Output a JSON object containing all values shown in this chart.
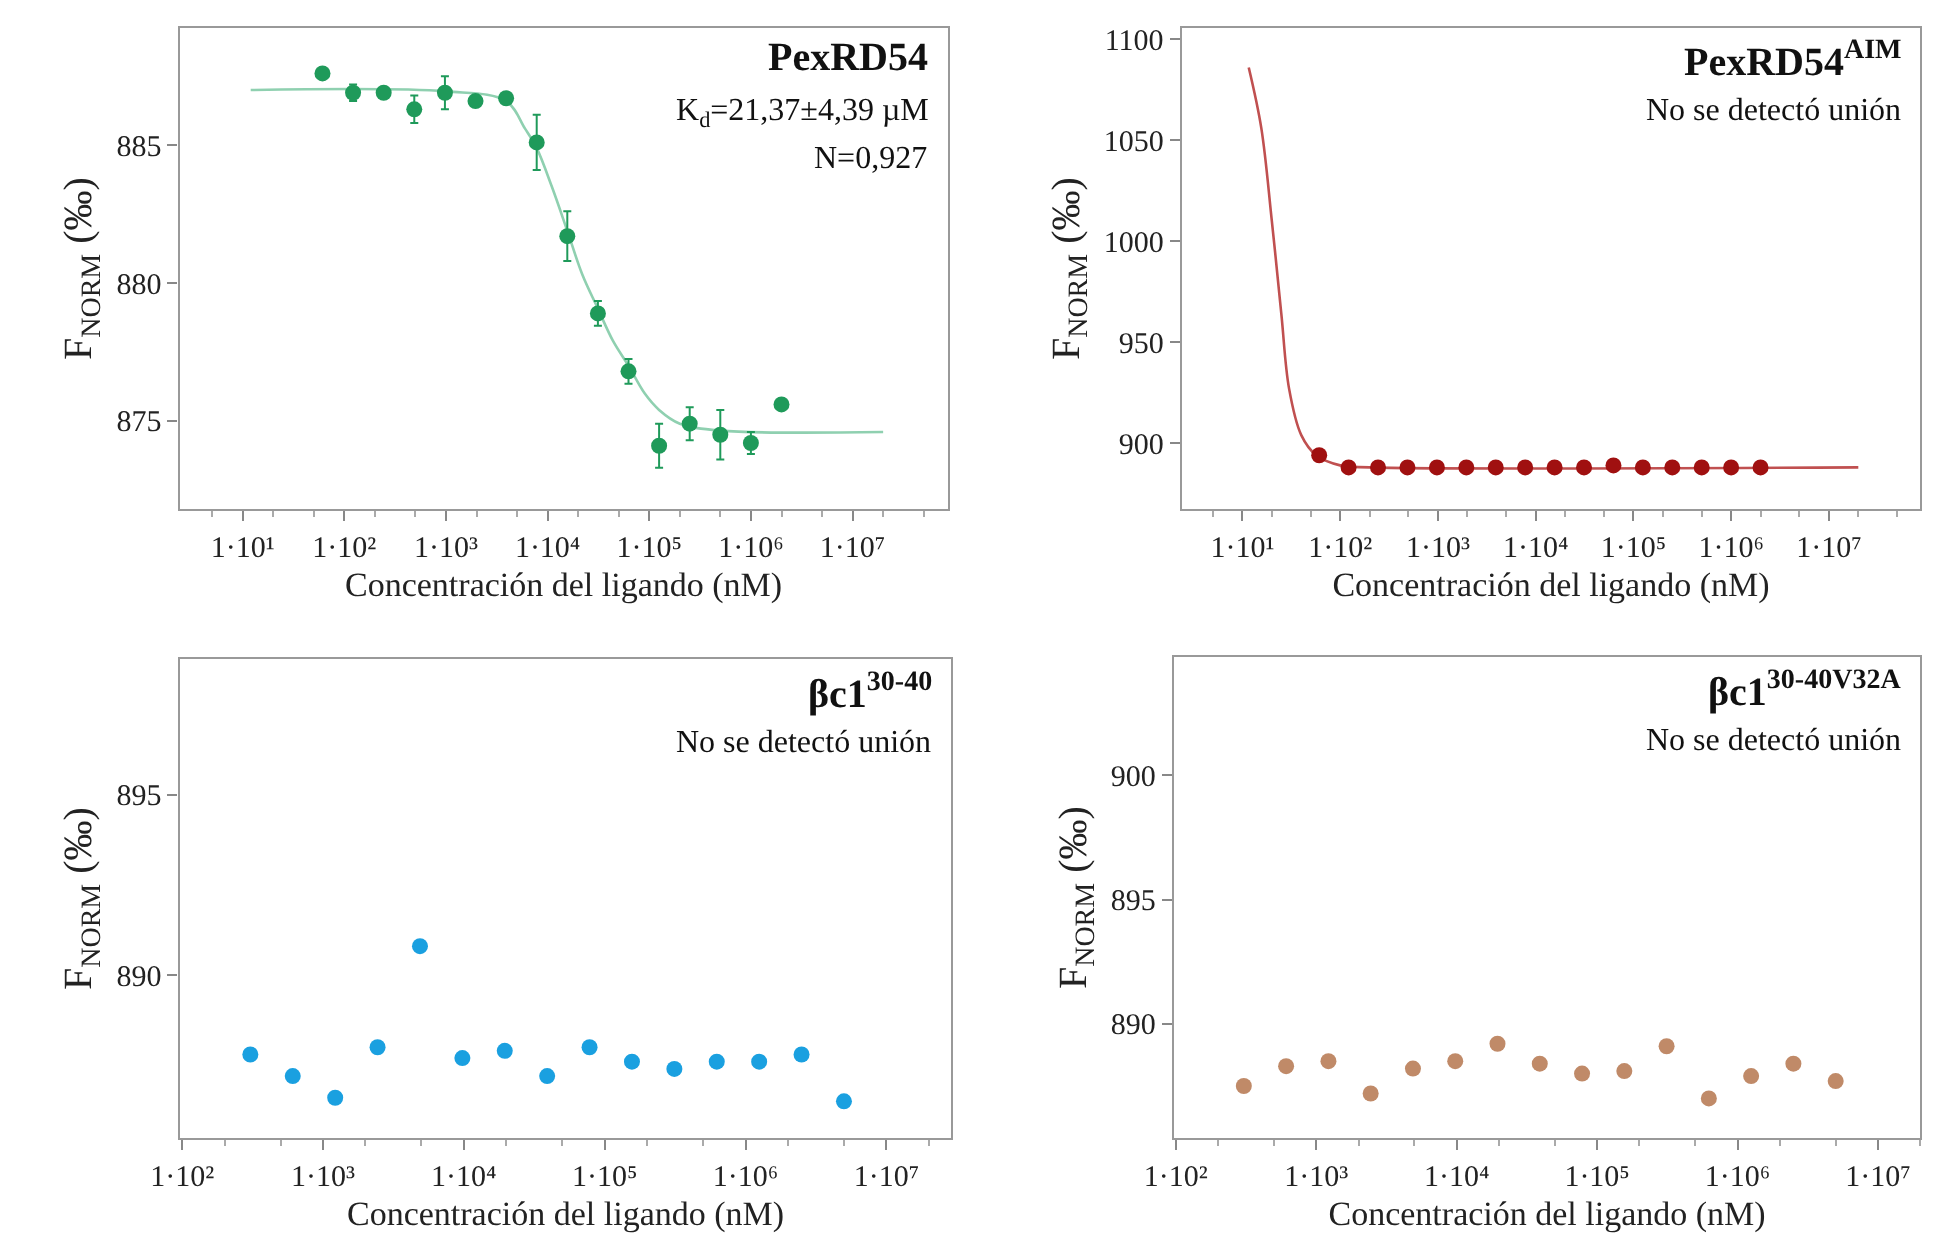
{
  "chart_data": [
    {
      "type": "scatter",
      "title": "PexRD54",
      "xlabel": "Concentración del ligando (nM)",
      "ylabel": "F$_{NORM}$ (‰)",
      "annotations": [
        "K$_{d}$=21,37±4,39 µM",
        "N=0,927"
      ],
      "log": "x",
      "marker": "circle",
      "xlim": [
        2.4,
        86000000
      ],
      "xticks": [
        {
          "value": 10,
          "label": "1·10¹"
        },
        {
          "value": 100,
          "label": "1·10²"
        },
        {
          "value": 1000,
          "label": "1·10³"
        },
        {
          "value": 10000,
          "label": "1·10⁴"
        },
        {
          "value": 100000,
          "label": "1·10⁵"
        },
        {
          "value": 1000000,
          "label": "1·10⁶"
        },
        {
          "value": 10000000,
          "label": "1·10⁷"
        }
      ],
      "ylim": [
        871.8,
        889.25
      ],
      "yticks": [
        875,
        880,
        885
      ],
      "series": [
        {
          "type": "line",
          "marker": "none",
          "color": "#8fd0b0",
          "x": [
            12,
            1000,
            3900,
            6000,
            7800,
            11000,
            15600,
            22000,
            31000,
            44000,
            62500,
            90000,
            125000,
            200000,
            500000,
            20000000
          ],
          "values": [
            887.0,
            886.95,
            886.6,
            885.6,
            884.9,
            883.5,
            881.9,
            880.3,
            879.1,
            877.9,
            877.0,
            876.0,
            875.4,
            874.9,
            874.65,
            874.6
          ]
        },
        {
          "color": "#1f9a5a",
          "x": [
            61,
            122,
            244,
            488,
            977,
            1953,
            3906,
            7813,
            15625,
            31250,
            62500,
            125000,
            250000,
            500000,
            1000000,
            2000000
          ],
          "values": [
            887.6,
            886.9,
            886.9,
            886.3,
            886.9,
            886.6,
            886.7,
            885.1,
            881.7,
            878.9,
            876.8,
            874.1,
            874.9,
            874.5,
            874.2,
            875.6
          ],
          "errors": [
            null,
            0.3,
            null,
            0.5,
            0.6,
            null,
            null,
            1.0,
            0.9,
            0.45,
            0.45,
            0.8,
            0.6,
            0.9,
            0.4,
            null
          ]
        }
      ]
    },
    {
      "type": "scatter",
      "title": "PexRD54$^{AIM}$",
      "subtitle": "No se detectó unión",
      "xlabel": "Concentración del ligando (nM)",
      "ylabel": "F$_{NORM}$ (‰)",
      "log": "x",
      "marker": "circle",
      "xlim": [
        2.4,
        86000000
      ],
      "xticks": [
        {
          "value": 10,
          "label": "1·10¹"
        },
        {
          "value": 100,
          "label": "1·10²"
        },
        {
          "value": 1000,
          "label": "1·10³"
        },
        {
          "value": 10000,
          "label": "1·10⁴"
        },
        {
          "value": 100000,
          "label": "1·10⁵"
        },
        {
          "value": 1000000,
          "label": "1·10⁶"
        },
        {
          "value": 10000000,
          "label": "1·10⁷"
        }
      ],
      "ylim": [
        867.3,
        1105.6
      ],
      "yticks": [
        900,
        950,
        1000,
        1050,
        1100
      ],
      "series": [
        {
          "type": "line",
          "marker": "none",
          "color": "#c05050",
          "x": [
            11.6,
            15.6,
            20,
            25,
            30,
            40,
            57,
            100,
            200,
            20000000
          ],
          "values": [
            1086,
            1056,
            1010,
            964,
            927,
            904,
            894,
            889,
            888,
            888
          ]
        },
        {
          "color": "#a01010",
          "x": [
            61,
            122,
            244,
            488,
            977,
            1953,
            3906,
            7813,
            15625,
            31250,
            62500,
            125000,
            250000,
            500000,
            1000000,
            2000000
          ],
          "values": [
            894,
            888,
            888,
            888,
            888,
            888,
            888,
            888,
            888,
            888,
            889,
            888,
            888,
            888,
            888,
            888
          ]
        }
      ]
    },
    {
      "type": "scatter",
      "title": "βc1$^{30-40}$",
      "subtitle": "No se detectó unión",
      "xlabel": "Concentración del ligando (nM)",
      "ylabel": "F$_{NORM}$ (‰)",
      "log": "x",
      "marker": "circle",
      "xlim": [
        96,
        29000000
      ],
      "xticks": [
        {
          "value": 100,
          "label": "1·10²"
        },
        {
          "value": 1000,
          "label": "1·10³"
        },
        {
          "value": 10000,
          "label": "1·10⁴"
        },
        {
          "value": 100000,
          "label": "1·10⁵"
        },
        {
          "value": 1000000,
          "label": "1·10⁶"
        },
        {
          "value": 10000000,
          "label": "1·10⁷"
        }
      ],
      "ylim": [
        885.48,
        898.76
      ],
      "yticks": [
        890,
        895
      ],
      "series": [
        {
          "color": "#1aa0e0",
          "x": [
            305,
            610,
            1221,
            2441,
            4883,
            9766,
            19531,
            39063,
            78125,
            156250,
            312500,
            625000,
            1250000,
            2500000,
            5000000
          ],
          "values": [
            887.8,
            887.2,
            886.6,
            888.0,
            890.8,
            887.7,
            887.9,
            887.2,
            888.0,
            887.6,
            887.4,
            887.6,
            887.6,
            887.8,
            886.5
          ]
        }
      ]
    },
    {
      "type": "scatter",
      "title": "βc1$^{30-40V32A}$",
      "subtitle": "No se detectó unión",
      "xlabel": "Concentración del ligando (nM)",
      "ylabel": "F$_{NORM}$ (‰)",
      "log": "x",
      "marker": "circle",
      "xlim": [
        97,
        20000000
      ],
      "xticks": [
        {
          "value": 100,
          "label": "1·10²"
        },
        {
          "value": 1000,
          "label": "1·10³"
        },
        {
          "value": 10000,
          "label": "1·10⁴"
        },
        {
          "value": 100000,
          "label": "1·10⁵"
        },
        {
          "value": 1000000,
          "label": "1·10⁶"
        },
        {
          "value": 10000000,
          "label": "1·10⁷"
        }
      ],
      "ylim": [
        885.4,
        904.77
      ],
      "yticks": [
        890,
        895,
        900
      ],
      "series": [
        {
          "color": "#c08a68",
          "x": [
            305,
            610,
            1221,
            2441,
            4883,
            9766,
            19531,
            39063,
            78125,
            156250,
            312500,
            625000,
            1250000,
            2500000,
            5000000
          ],
          "values": [
            887.5,
            888.3,
            888.5,
            887.2,
            888.2,
            888.5,
            889.2,
            888.4,
            888.0,
            888.1,
            889.1,
            887.0,
            887.9,
            888.4,
            887.7
          ]
        }
      ]
    }
  ]
}
